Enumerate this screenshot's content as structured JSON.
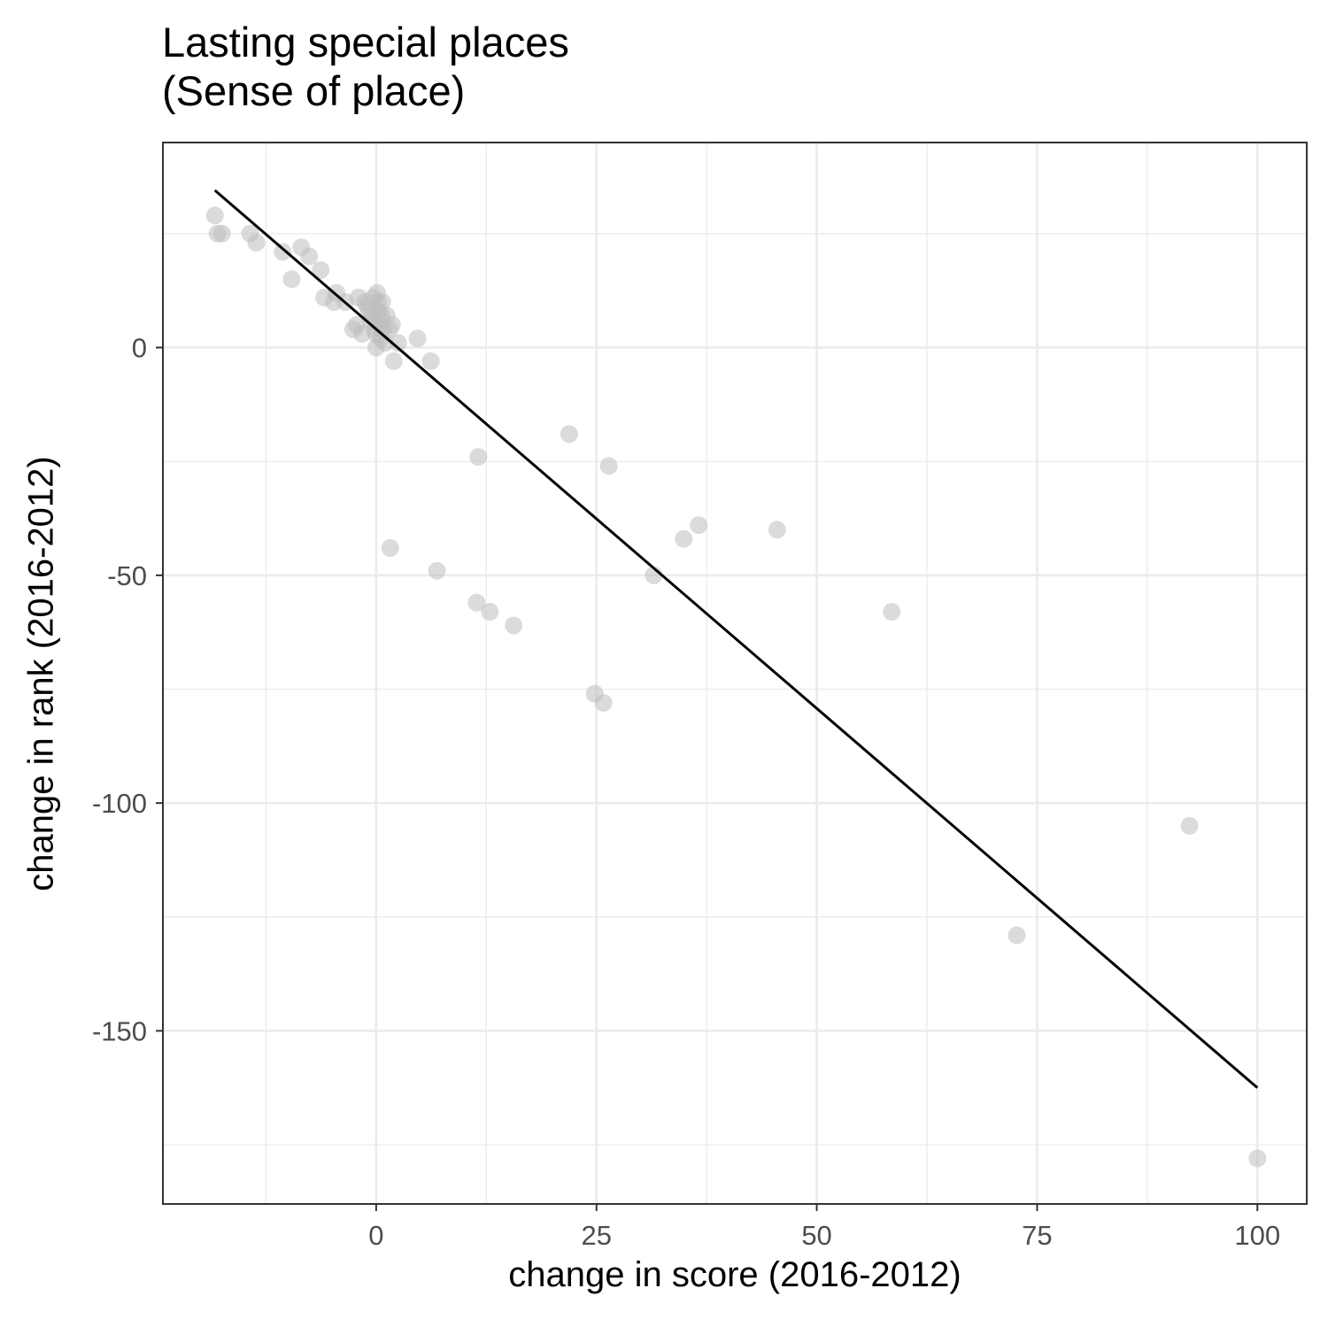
{
  "chart_data": {
    "type": "scatter",
    "title": "Lasting special places\n(Sense of place)",
    "xlabel": "change in score (2016-2012)",
    "ylabel": "change in rank (2016-2012)",
    "xlim": [
      -24.2,
      105.6
    ],
    "ylim": [
      -188,
      45
    ],
    "x_ticks": [
      0,
      25,
      50,
      75,
      100
    ],
    "x_tick_labels": [
      "0",
      "25",
      "50",
      "75",
      "100"
    ],
    "y_ticks": [
      0,
      -50,
      -100,
      -150
    ],
    "y_tick_labels": [
      "0",
      "-50",
      "-100",
      "-150"
    ],
    "grid": true,
    "legend": "none",
    "point_color": "#bebebe",
    "line_color": "#000000",
    "points": [
      {
        "x": -18.3,
        "y": 29
      },
      {
        "x": -18.0,
        "y": 25
      },
      {
        "x": -17.5,
        "y": 25
      },
      {
        "x": -14.3,
        "y": 25
      },
      {
        "x": -13.6,
        "y": 23
      },
      {
        "x": -10.6,
        "y": 21
      },
      {
        "x": -9.6,
        "y": 15
      },
      {
        "x": -8.5,
        "y": 22
      },
      {
        "x": -7.6,
        "y": 20
      },
      {
        "x": -6.3,
        "y": 17
      },
      {
        "x": -5.9,
        "y": 11
      },
      {
        "x": -4.8,
        "y": 10
      },
      {
        "x": -4.5,
        "y": 12
      },
      {
        "x": -3.5,
        "y": 10
      },
      {
        "x": -2.6,
        "y": 4
      },
      {
        "x": -2.2,
        "y": 5
      },
      {
        "x": -2.0,
        "y": 11
      },
      {
        "x": -1.6,
        "y": 3
      },
      {
        "x": -1.3,
        "y": 10
      },
      {
        "x": -1.0,
        "y": 9
      },
      {
        "x": -0.8,
        "y": 8
      },
      {
        "x": -0.6,
        "y": 6
      },
      {
        "x": -0.4,
        "y": 7
      },
      {
        "x": -0.3,
        "y": 11
      },
      {
        "x": -0.2,
        "y": 4
      },
      {
        "x": 0.0,
        "y": 0
      },
      {
        "x": 0.0,
        "y": 3
      },
      {
        "x": 0.0,
        "y": 6
      },
      {
        "x": 0.1,
        "y": 12
      },
      {
        "x": 0.2,
        "y": 10
      },
      {
        "x": 0.3,
        "y": 8
      },
      {
        "x": 0.4,
        "y": 5
      },
      {
        "x": 0.5,
        "y": 2
      },
      {
        "x": 0.6,
        "y": 7
      },
      {
        "x": 0.7,
        "y": 10
      },
      {
        "x": 0.8,
        "y": 4
      },
      {
        "x": 1.0,
        "y": 1
      },
      {
        "x": 1.2,
        "y": 7
      },
      {
        "x": 1.5,
        "y": 4
      },
      {
        "x": 1.8,
        "y": 5
      },
      {
        "x": 2.0,
        "y": -3
      },
      {
        "x": 2.5,
        "y": 1
      },
      {
        "x": 4.7,
        "y": 2
      },
      {
        "x": 6.2,
        "y": -3
      },
      {
        "x": 1.6,
        "y": -44
      },
      {
        "x": 6.9,
        "y": -49
      },
      {
        "x": 11.6,
        "y": -24
      },
      {
        "x": 11.4,
        "y": -56
      },
      {
        "x": 12.9,
        "y": -58
      },
      {
        "x": 15.6,
        "y": -61
      },
      {
        "x": 21.9,
        "y": -19
      },
      {
        "x": 24.8,
        "y": -76
      },
      {
        "x": 25.8,
        "y": -78
      },
      {
        "x": 26.4,
        "y": -26
      },
      {
        "x": 31.5,
        "y": -50
      },
      {
        "x": 34.9,
        "y": -42
      },
      {
        "x": 36.6,
        "y": -39
      },
      {
        "x": 45.5,
        "y": -40
      },
      {
        "x": 58.5,
        "y": -58
      },
      {
        "x": 72.7,
        "y": -129
      },
      {
        "x": 92.3,
        "y": -105
      },
      {
        "x": 100.0,
        "y": -178
      }
    ],
    "trend_line": {
      "x": [
        -18.3,
        100.0
      ],
      "y": [
        34.5,
        -162.5
      ]
    }
  }
}
